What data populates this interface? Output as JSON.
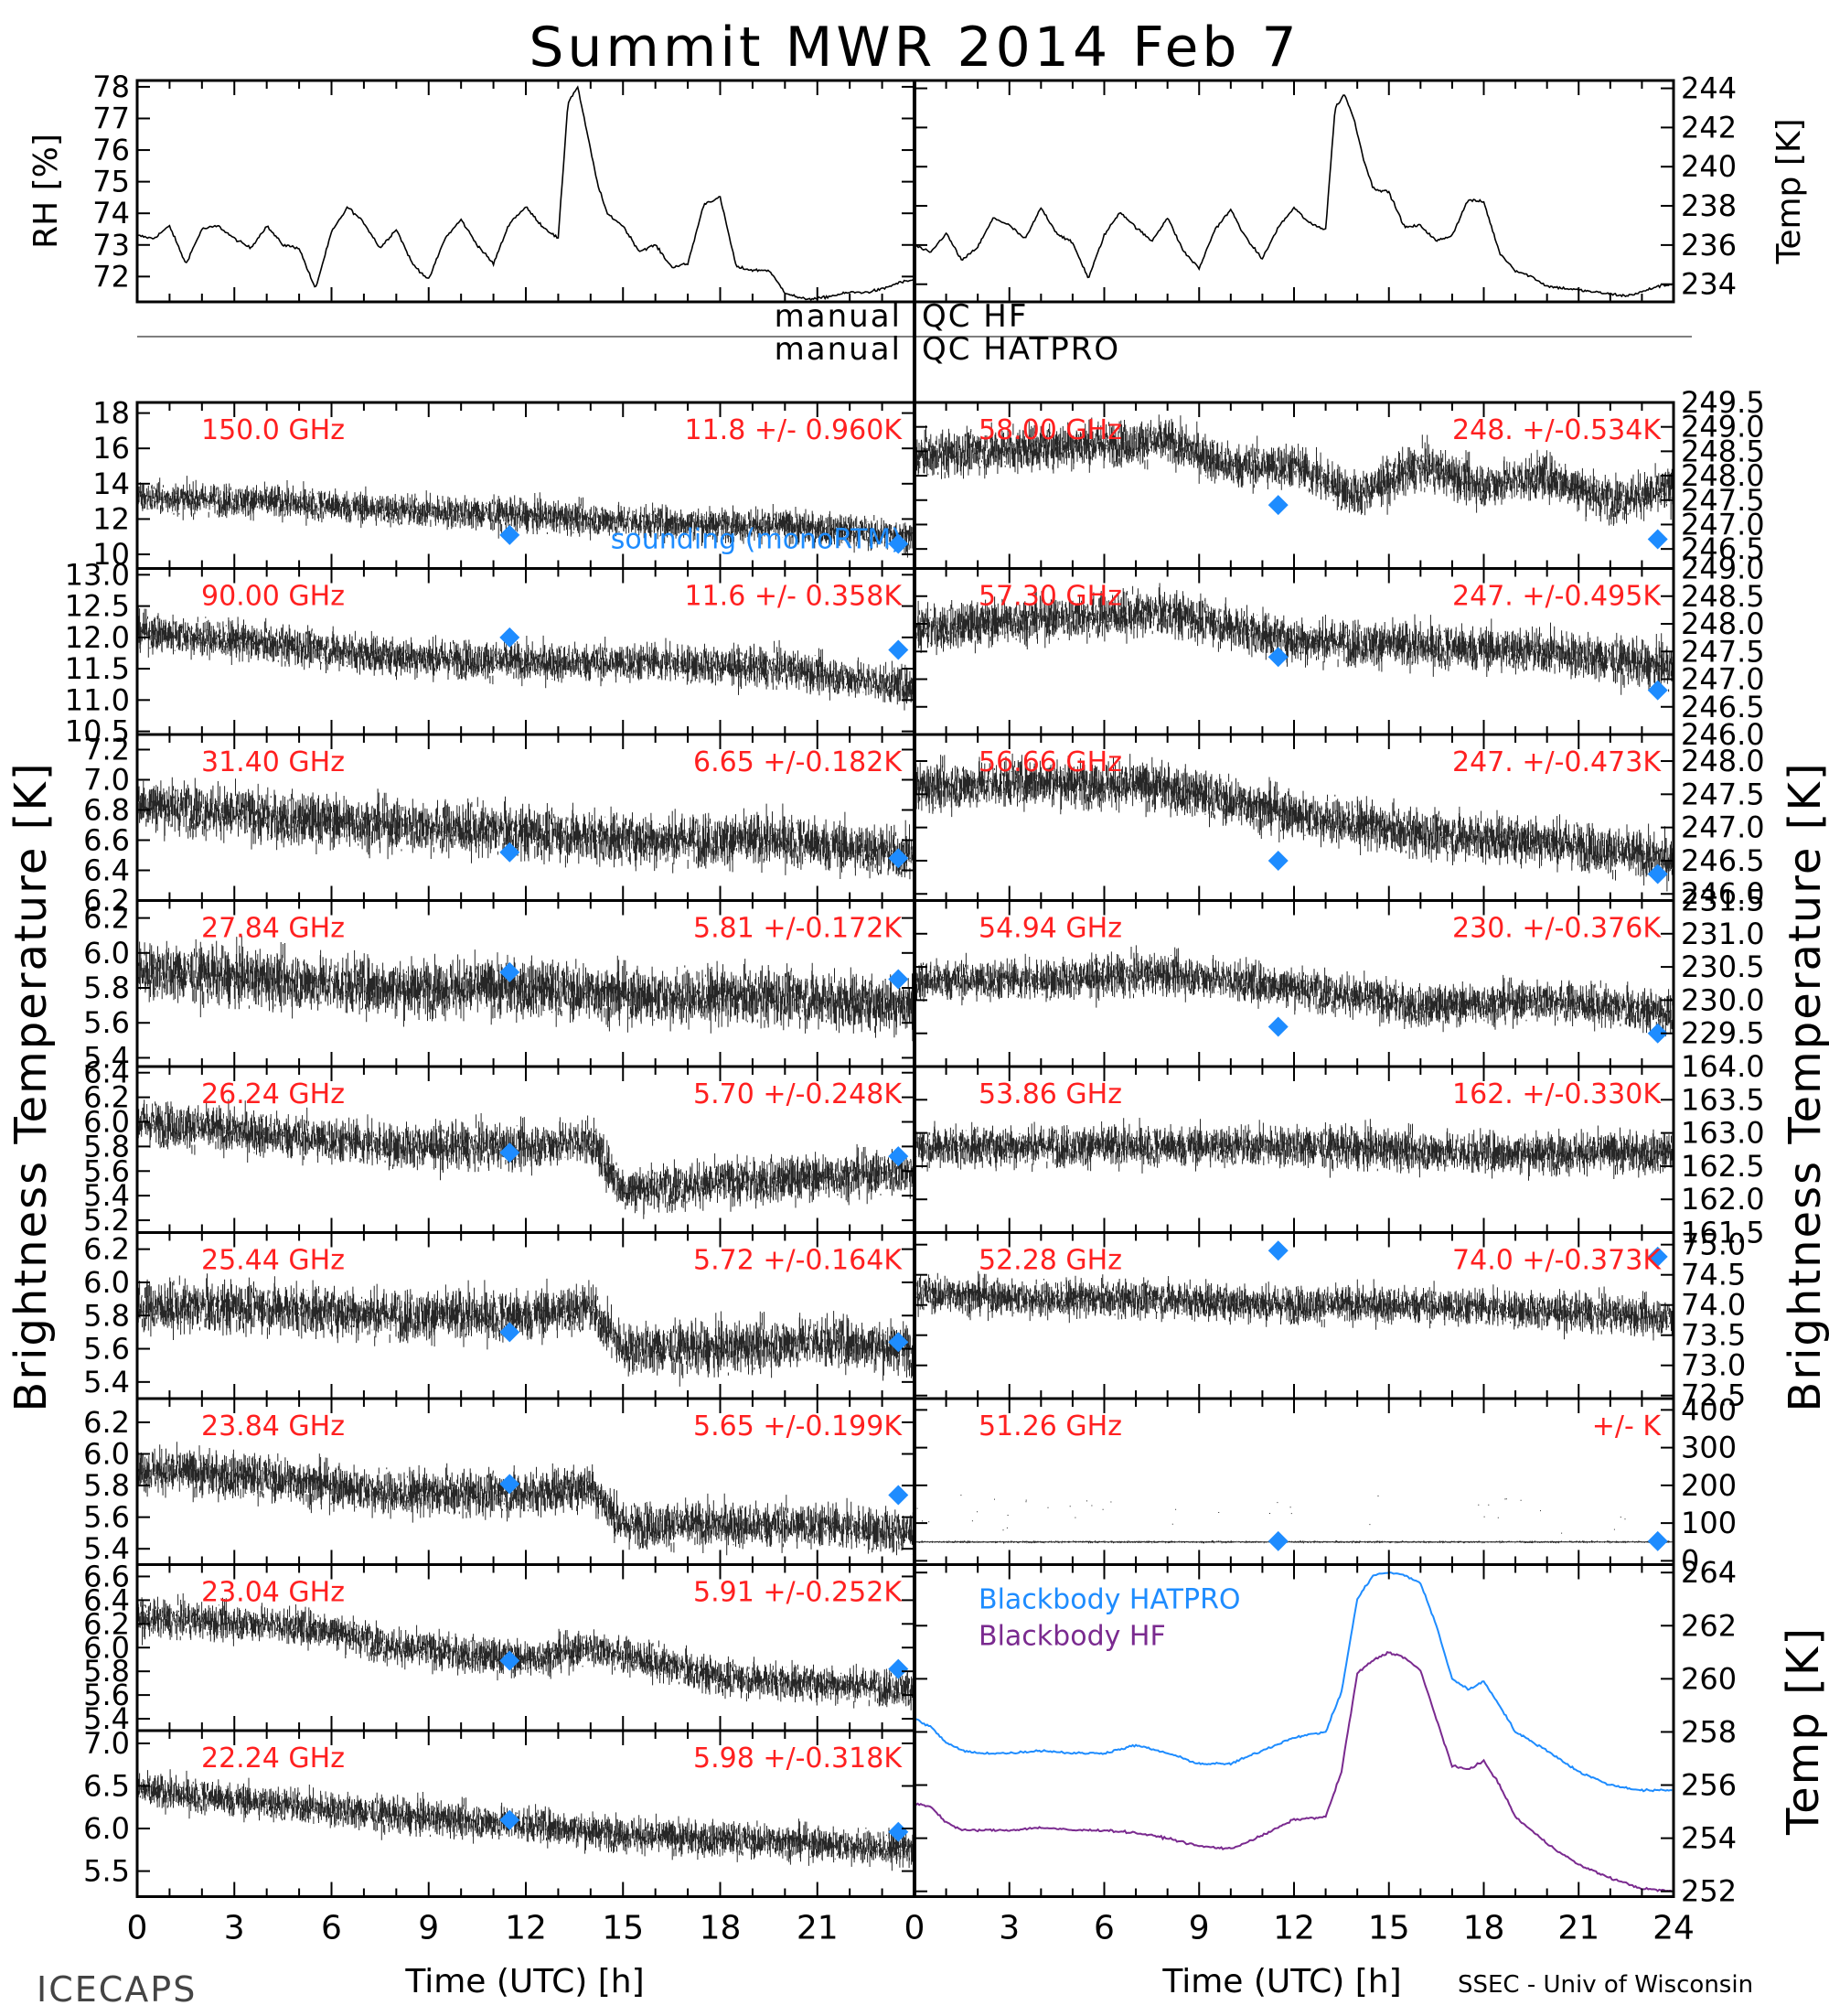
{
  "title": "Summit MWR 2014 Feb 7",
  "footer": {
    "left": "ICECAPS",
    "right": "SSEC - Univ of Wisconsin"
  },
  "qc": {
    "hf_left": "manual",
    "hf_right": "QC HF",
    "hatpro_left": "manual",
    "hatpro_right": "QC HATPRO"
  },
  "x_axis": {
    "label": "Time (UTC) [h]",
    "ticks": [
      "0",
      "3",
      "6",
      "9",
      "12",
      "15",
      "18",
      "21",
      "24"
    ],
    "range": [
      0,
      24
    ]
  },
  "left_ylabel": "Brightness Temperature [K]",
  "right_ylabel": "Brightness Temperature [K]",
  "colors": {
    "trace": "#000000",
    "label": "#ff2020",
    "marker": "#1e8cff",
    "hatpro": "#1e8cff",
    "hf": "#7a2a8f"
  },
  "chart_data": [
    {
      "type": "line",
      "name": "rh",
      "ylabel": "RH [%]",
      "ylim": [
        71.2,
        78.2
      ],
      "yticks": [
        "72",
        "73",
        "74",
        "75",
        "76",
        "77",
        "78"
      ],
      "x": [
        0,
        0.5,
        1,
        1.5,
        2,
        2.5,
        3,
        3.5,
        4,
        4.5,
        5,
        5.5,
        6,
        6.5,
        7,
        7.5,
        8,
        8.5,
        9,
        9.5,
        10,
        10.5,
        11,
        11.5,
        12,
        12.5,
        13,
        13.3,
        13.6,
        13.9,
        14.2,
        14.5,
        15,
        15.5,
        16,
        16.5,
        17,
        17.5,
        18,
        18.5,
        19,
        19.5,
        20,
        20.5,
        21,
        21.5,
        22,
        22.5,
        23,
        23.5,
        24
      ],
      "values": [
        73.3,
        73.2,
        73.6,
        72.4,
        73.5,
        73.6,
        73.2,
        72.9,
        73.6,
        73.0,
        72.9,
        71.6,
        73.4,
        74.2,
        73.7,
        72.9,
        73.5,
        72.4,
        71.9,
        73.2,
        73.8,
        73.0,
        72.4,
        73.7,
        74.2,
        73.6,
        73.2,
        77.5,
        78.0,
        76.5,
        75.0,
        74.0,
        73.6,
        72.8,
        73.0,
        72.3,
        72.4,
        74.3,
        74.5,
        72.3,
        72.2,
        72.2,
        71.5,
        71.3,
        71.3,
        71.4,
        71.5,
        71.5,
        71.6,
        71.8,
        71.9
      ]
    },
    {
      "type": "line",
      "name": "temp",
      "ylabel": "Temp [K]",
      "ylim": [
        233.1,
        244.4
      ],
      "yticks": [
        "234",
        "236",
        "238",
        "240",
        "242",
        "244"
      ],
      "x": [
        0,
        0.5,
        1,
        1.5,
        2,
        2.5,
        3,
        3.5,
        4,
        4.5,
        5,
        5.5,
        6,
        6.5,
        7,
        7.5,
        8,
        8.5,
        9,
        9.5,
        10,
        10.5,
        11,
        11.5,
        12,
        12.5,
        13,
        13.3,
        13.6,
        13.9,
        14.2,
        14.5,
        15,
        15.5,
        16,
        16.5,
        17,
        17.5,
        18,
        18.5,
        19,
        19.5,
        20,
        20.5,
        21,
        21.5,
        22,
        22.5,
        23,
        23.5,
        24
      ],
      "values": [
        236.0,
        235.6,
        236.6,
        235.2,
        235.9,
        237.4,
        237.0,
        236.3,
        237.9,
        236.6,
        236.1,
        234.3,
        236.5,
        237.7,
        236.9,
        236.2,
        237.4,
        235.7,
        234.8,
        236.8,
        237.8,
        236.3,
        235.3,
        236.9,
        237.9,
        237.1,
        236.8,
        243.0,
        243.7,
        242.4,
        240.4,
        238.9,
        238.7,
        236.9,
        237.0,
        236.2,
        236.5,
        238.3,
        238.2,
        235.6,
        234.7,
        234.4,
        233.9,
        233.8,
        233.7,
        233.6,
        233.5,
        233.4,
        233.6,
        233.9,
        234.0
      ]
    },
    {
      "type": "scatter",
      "name": "150.0",
      "label": "150.0 GHz",
      "stat": "11.8 +/- 0.960K",
      "ylim": [
        9.2,
        18.6
      ],
      "yticks": [
        "10",
        "12",
        "14",
        "16",
        "18"
      ],
      "noise": 0.9,
      "x": [
        0,
        4,
        8,
        12,
        16,
        20,
        24
      ],
      "values": [
        13.2,
        13.0,
        12.5,
        12.2,
        11.8,
        11.6,
        11.0
      ],
      "markers_x": [
        11.5,
        23.5
      ],
      "markers_y": [
        11.1,
        10.6
      ],
      "markers_label": "sounding (monoRTM)"
    },
    {
      "type": "scatter",
      "name": "58.00",
      "label": "58.00 GHz",
      "stat": "248. +/-0.534K",
      "ylim": [
        246.1,
        249.5
      ],
      "yticks": [
        "246.5",
        "247.0",
        "247.5",
        "248.0",
        "248.5",
        "249.0",
        "249.5"
      ],
      "noise": 0.45,
      "x": [
        0,
        4,
        8,
        10,
        12,
        14,
        16,
        18,
        20,
        22,
        24
      ],
      "values": [
        248.4,
        248.6,
        248.7,
        248.2,
        248.2,
        247.6,
        248.2,
        247.8,
        248.0,
        247.5,
        247.7
      ],
      "markers_x": [
        11.5,
        23.5
      ],
      "markers_y": [
        247.4,
        246.7
      ]
    },
    {
      "type": "scatter",
      "name": "90.00",
      "label": "90.00 GHz",
      "stat": "11.6 +/- 0.358K",
      "ylim": [
        10.45,
        13.1
      ],
      "yticks": [
        "10.5",
        "11.0",
        "11.5",
        "12.0",
        "12.5",
        "13.0"
      ],
      "noise": 0.3,
      "x": [
        0,
        4,
        8,
        12,
        16,
        20,
        24
      ],
      "values": [
        12.1,
        11.9,
        11.7,
        11.6,
        11.6,
        11.5,
        11.2
      ],
      "markers_x": [
        11.5,
        23.5
      ],
      "markers_y": [
        12.0,
        11.8
      ]
    },
    {
      "type": "scatter",
      "name": "57.30",
      "label": "57.30 GHz",
      "stat": "247. +/-0.495K",
      "ylim": [
        246.0,
        249.0
      ],
      "yticks": [
        "246.0",
        "246.5",
        "247.0",
        "247.5",
        "248.0",
        "248.5",
        "249.0"
      ],
      "noise": 0.4,
      "x": [
        0,
        4,
        8,
        12,
        16,
        20,
        24
      ],
      "values": [
        247.9,
        248.1,
        248.2,
        247.7,
        247.6,
        247.5,
        247.2
      ],
      "markers_x": [
        11.5,
        23.5
      ],
      "markers_y": [
        247.4,
        246.8
      ]
    },
    {
      "type": "scatter",
      "name": "31.40",
      "label": "31.40 GHz",
      "stat": "6.65 +/-0.182K",
      "ylim": [
        6.2,
        7.3
      ],
      "yticks": [
        "6.2",
        "6.4",
        "6.6",
        "6.8",
        "7.0",
        "7.2"
      ],
      "noise": 0.17,
      "x": [
        0,
        4,
        8,
        12,
        16,
        20,
        24
      ],
      "values": [
        6.85,
        6.75,
        6.7,
        6.65,
        6.6,
        6.6,
        6.5
      ],
      "markers_x": [
        11.5,
        23.5
      ],
      "markers_y": [
        6.52,
        6.48
      ]
    },
    {
      "type": "scatter",
      "name": "56.66",
      "label": "56.66 GHz",
      "stat": "247. +/-0.473K",
      "ylim": [
        245.9,
        248.4
      ],
      "yticks": [
        "246.0",
        "246.5",
        "247.0",
        "247.5",
        "248.0"
      ],
      "noise": 0.35,
      "x": [
        0,
        4,
        8,
        12,
        16,
        20,
        24
      ],
      "values": [
        247.6,
        247.7,
        247.6,
        247.2,
        246.9,
        246.8,
        246.5
      ],
      "markers_x": [
        11.5,
        23.5
      ],
      "markers_y": [
        246.5,
        246.3
      ]
    },
    {
      "type": "scatter",
      "name": "27.84",
      "label": "27.84 GHz",
      "stat": "5.81 +/-0.172K",
      "ylim": [
        5.35,
        6.3
      ],
      "yticks": [
        "5.4",
        "5.6",
        "5.8",
        "6.0",
        "6.2"
      ],
      "noise": 0.16,
      "x": [
        0,
        4,
        8,
        12,
        16,
        20,
        24
      ],
      "values": [
        5.9,
        5.85,
        5.8,
        5.8,
        5.75,
        5.75,
        5.7
      ],
      "markers_x": [
        11.5,
        23.5
      ],
      "markers_y": [
        5.89,
        5.85
      ]
    },
    {
      "type": "scatter",
      "name": "54.94",
      "label": "54.94 GHz",
      "stat": "230. +/-0.376K",
      "ylim": [
        229.0,
        231.5
      ],
      "yticks": [
        "229.5",
        "230.0",
        "230.5",
        "231.0",
        "231.5"
      ],
      "noise": 0.3,
      "x": [
        0,
        4,
        8,
        12,
        16,
        20,
        24
      ],
      "values": [
        230.3,
        230.3,
        230.4,
        230.2,
        229.9,
        230.0,
        229.8
      ],
      "markers_x": [
        11.5,
        23.5
      ],
      "markers_y": [
        229.6,
        229.5
      ]
    },
    {
      "type": "scatter",
      "name": "26.24",
      "label": "26.24 GHz",
      "stat": "5.70 +/-0.248K",
      "ylim": [
        5.1,
        6.45
      ],
      "yticks": [
        "5.2",
        "5.4",
        "5.6",
        "5.8",
        "6.0",
        "6.2",
        "6.4"
      ],
      "noise": 0.18,
      "x": [
        0,
        4,
        8,
        12,
        14,
        15,
        18,
        21,
        24
      ],
      "values": [
        6.0,
        5.9,
        5.8,
        5.8,
        5.85,
        5.45,
        5.5,
        5.55,
        5.6
      ],
      "markers_x": [
        11.5,
        23.5
      ],
      "markers_y": [
        5.75,
        5.72
      ]
    },
    {
      "type": "scatter",
      "name": "53.86",
      "label": "53.86 GHz",
      "stat": "162. +/-0.330K",
      "ylim": [
        161.5,
        164.0
      ],
      "yticks": [
        "161.5",
        "162.0",
        "162.5",
        "163.0",
        "163.5",
        "164.0"
      ],
      "noise": 0.3,
      "x": [
        0,
        6,
        12,
        18,
        24
      ],
      "values": [
        162.8,
        162.8,
        162.8,
        162.7,
        162.7
      ],
      "markers_x": [],
      "markers_y": []
    },
    {
      "type": "scatter",
      "name": "25.44",
      "label": "25.44 GHz",
      "stat": "5.72 +/-0.164K",
      "ylim": [
        5.3,
        6.3
      ],
      "yticks": [
        "5.4",
        "5.6",
        "5.8",
        "6.0",
        "6.2"
      ],
      "noise": 0.15,
      "x": [
        0,
        4,
        8,
        12,
        14,
        15,
        18,
        21,
        24
      ],
      "values": [
        5.85,
        5.85,
        5.8,
        5.8,
        5.85,
        5.6,
        5.6,
        5.65,
        5.6
      ],
      "markers_x": [
        11.5,
        23.5
      ],
      "markers_y": [
        5.7,
        5.64
      ]
    },
    {
      "type": "scatter",
      "name": "52.28",
      "label": "52.28 GHz",
      "stat": "74.0 +/-0.373K",
      "ylim": [
        72.45,
        75.2
      ],
      "yticks": [
        "72.5",
        "73.0",
        "73.5",
        "74.0",
        "74.5",
        "75.0"
      ],
      "noise": 0.3,
      "x": [
        0,
        4,
        8,
        12,
        16,
        20,
        24
      ],
      "values": [
        74.2,
        74.1,
        74.1,
        74.0,
        74.0,
        73.9,
        73.8
      ],
      "markers_x": [
        11.5,
        23.5
      ],
      "markers_y": [
        74.9,
        74.8
      ]
    },
    {
      "type": "scatter",
      "name": "23.84",
      "label": "23.84 GHz",
      "stat": "5.65 +/-0.199K",
      "ylim": [
        5.3,
        6.35
      ],
      "yticks": [
        "5.4",
        "5.6",
        "5.8",
        "6.0",
        "6.2"
      ],
      "noise": 0.14,
      "x": [
        0,
        4,
        8,
        12,
        14,
        15,
        18,
        21,
        24
      ],
      "values": [
        5.9,
        5.85,
        5.75,
        5.75,
        5.8,
        5.55,
        5.55,
        5.55,
        5.5
      ],
      "markers_x": [
        11.5,
        23.5
      ],
      "markers_y": [
        5.81,
        5.74
      ]
    },
    {
      "type": "scatter",
      "name": "51.26",
      "label": "51.26 GHz",
      "stat": "+/- K",
      "ylim": [
        -10,
        430
      ],
      "yticks": [
        "0",
        "100",
        "200",
        "300",
        "400"
      ],
      "noise": 3,
      "x": [
        0,
        24
      ],
      "values": [
        50,
        50
      ],
      "markers_x": [
        11.5,
        23.5
      ],
      "markers_y": [
        52,
        52
      ]
    },
    {
      "type": "scatter",
      "name": "23.04",
      "label": "23.04 GHz",
      "stat": "5.91 +/-0.252K",
      "ylim": [
        5.3,
        6.7
      ],
      "yticks": [
        "5.4",
        "5.6",
        "5.8",
        "6.0",
        "6.2",
        "6.4",
        "6.6"
      ],
      "noise": 0.15,
      "x": [
        0,
        4,
        6,
        8,
        12,
        14,
        18,
        24
      ],
      "values": [
        6.25,
        6.2,
        6.15,
        6.0,
        5.9,
        6.0,
        5.75,
        5.65
      ],
      "markers_x": [
        11.5,
        23.5
      ],
      "markers_y": [
        5.89,
        5.82
      ]
    },
    {
      "type": "line",
      "name": "blackbody",
      "ylim": [
        251.8,
        264.3
      ],
      "yticks": [
        "252",
        "254",
        "256",
        "258",
        "260",
        "262",
        "264"
      ],
      "series": [
        {
          "name": "Blackbody HATPRO",
          "x": [
            0,
            0.5,
            1,
            1.5,
            2,
            3,
            4,
            5,
            6,
            7,
            8,
            9,
            10,
            11,
            12,
            13,
            13.5,
            14,
            14.5,
            15,
            15.5,
            16,
            16.5,
            17,
            17.5,
            18,
            18.5,
            19,
            20,
            21,
            22,
            23,
            24
          ],
          "values": [
            258.5,
            258.2,
            257.6,
            257.3,
            257.2,
            257.2,
            257.3,
            257.2,
            257.2,
            257.5,
            257.2,
            256.8,
            256.8,
            257.3,
            257.8,
            258.0,
            259.5,
            263.0,
            263.9,
            264.0,
            263.9,
            263.6,
            262.0,
            260.0,
            259.6,
            259.9,
            259.0,
            258.0,
            257.3,
            256.5,
            256.0,
            255.8,
            255.8
          ]
        },
        {
          "name": "Blackbody HF",
          "x": [
            0,
            0.5,
            1,
            1.5,
            2,
            3,
            4,
            5,
            6,
            7,
            8,
            9,
            10,
            11,
            12,
            13,
            13.5,
            14,
            14.5,
            15,
            15.5,
            16,
            16.5,
            17,
            17.5,
            18,
            18.5,
            19,
            20,
            21,
            22,
            23,
            24
          ],
          "values": [
            255.3,
            255.2,
            254.6,
            254.3,
            254.3,
            254.3,
            254.4,
            254.3,
            254.3,
            254.2,
            254.0,
            253.7,
            253.6,
            254.1,
            254.7,
            254.8,
            256.5,
            260.2,
            260.7,
            261.0,
            260.8,
            260.3,
            258.5,
            256.7,
            256.6,
            256.9,
            256.0,
            254.8,
            253.8,
            253.0,
            252.5,
            252.1,
            252.0
          ]
        }
      ]
    },
    {
      "type": "scatter",
      "name": "22.24",
      "label": "22.24 GHz",
      "stat": "5.98 +/-0.318K",
      "ylim": [
        5.2,
        7.15
      ],
      "yticks": [
        "5.5",
        "6.0",
        "6.5",
        "7.0"
      ],
      "noise": 0.2,
      "x": [
        0,
        4,
        8,
        12,
        16,
        20,
        24
      ],
      "values": [
        6.45,
        6.3,
        6.15,
        6.05,
        5.9,
        5.85,
        5.75
      ],
      "markers_x": [
        11.5,
        23.5
      ],
      "markers_y": [
        6.1,
        5.96
      ]
    }
  ]
}
